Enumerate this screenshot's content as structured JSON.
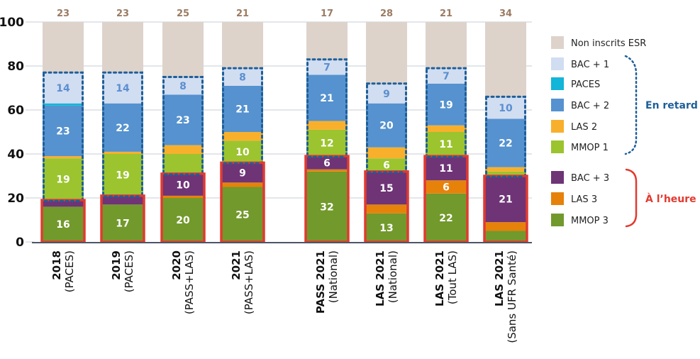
{
  "chart_data": {
    "type": "bar",
    "stacked": true,
    "title": "",
    "xlabel": "",
    "ylabel": "",
    "ylim": [
      0,
      100
    ],
    "yticks": [
      0,
      20,
      40,
      60,
      80,
      100
    ],
    "grid": true,
    "legend_position": "right",
    "categories": [
      {
        "main": "2018",
        "sub": "(PACES)"
      },
      {
        "main": "2019",
        "sub": "(PACES)"
      },
      {
        "main": "2020",
        "sub": "(PASS+LAS)"
      },
      {
        "main": "2021",
        "sub": "(PASS+LAS)"
      },
      {
        "main": "PASS 2021",
        "sub": "(National)"
      },
      {
        "main": "LAS 2021",
        "sub": "(National)"
      },
      {
        "main": "LAS 2021",
        "sub": "(Tout LAS)"
      },
      {
        "main": "LAS 2021",
        "sub": "(Sans UFR Santé)"
      }
    ],
    "series": [
      {
        "name": "MMOP 3",
        "color": "#72992c",
        "group": "on_time",
        "values": [
          16,
          17,
          20,
          25,
          32,
          13,
          22,
          5
        ],
        "labels": [
          "16",
          "17",
          "20",
          "25",
          "32",
          "13",
          "22",
          ""
        ]
      },
      {
        "name": "LAS 3",
        "color": "#e6820a",
        "group": "on_time",
        "values": [
          0,
          0,
          1,
          2,
          1,
          4,
          6,
          4
        ],
        "labels": [
          "",
          "",
          "",
          "",
          "",
          "",
          "6",
          ""
        ]
      },
      {
        "name": "BAC + 3",
        "color": "#6e3476",
        "group": "on_time",
        "values": [
          3,
          4,
          10,
          9,
          6,
          15,
          11,
          21
        ],
        "labels": [
          "",
          "",
          "10",
          "9",
          "6",
          "15",
          "11",
          "21"
        ]
      },
      {
        "name": "MMOP 1",
        "color": "#9bc42e",
        "group": "late",
        "values": [
          19,
          19,
          9,
          10,
          12,
          6,
          11,
          2
        ],
        "labels": [
          "19",
          "19",
          "",
          "10",
          "12",
          "6",
          "11",
          ""
        ]
      },
      {
        "name": "LAS 2",
        "color": "#f8b02c",
        "group": "late",
        "values": [
          1,
          1,
          4,
          4,
          4,
          5,
          3,
          2
        ],
        "labels": [
          "",
          "",
          "",
          "",
          "",
          "",
          "",
          ""
        ]
      },
      {
        "name": "BAC + 2",
        "color": "#5592cf",
        "group": "late",
        "values": [
          23,
          22,
          23,
          21,
          21,
          20,
          19,
          22
        ],
        "labels": [
          "23",
          "22",
          "23",
          "21",
          "21",
          "20",
          "19",
          "22"
        ]
      },
      {
        "name": "PACES",
        "color": "#13b5d8",
        "group": "late",
        "values": [
          1,
          0,
          0,
          0,
          0,
          0,
          0,
          0
        ],
        "labels": [
          "",
          "",
          "",
          "",
          "",
          "",
          "",
          ""
        ]
      },
      {
        "name": "BAC + 1",
        "color": "#d1ddf1",
        "group": "late",
        "values": [
          14,
          14,
          8,
          8,
          7,
          9,
          7,
          10
        ],
        "labels": [
          "14",
          "14",
          "8",
          "8",
          "7",
          "9",
          "7",
          "10"
        ],
        "light": true
      },
      {
        "name": "Non inscrits ESR",
        "color": "#ddd3cb",
        "group": "none",
        "values": [
          23,
          23,
          25,
          21,
          17,
          28,
          21,
          34
        ],
        "labels": [
          "23",
          "23",
          "25",
          "21",
          "17",
          "28",
          "21",
          "34"
        ],
        "label_above": true
      }
    ],
    "legend_order": [
      "Non inscrits ESR",
      "BAC + 1",
      "PACES",
      "BAC + 2",
      "LAS 2",
      "MMOP 1",
      "BAC + 3",
      "LAS 3",
      "MMOP 3"
    ],
    "groups": {
      "late": {
        "label": "En retard",
        "color": "#1f5f99",
        "outline": "dotted"
      },
      "on_time": {
        "label": "À l’heure",
        "color": "#e23a30",
        "outline": "solid"
      }
    },
    "colors": {
      "grid": "#c7ccd6",
      "axis": "#4d5566",
      "top_label": "#9b7b62"
    }
  }
}
